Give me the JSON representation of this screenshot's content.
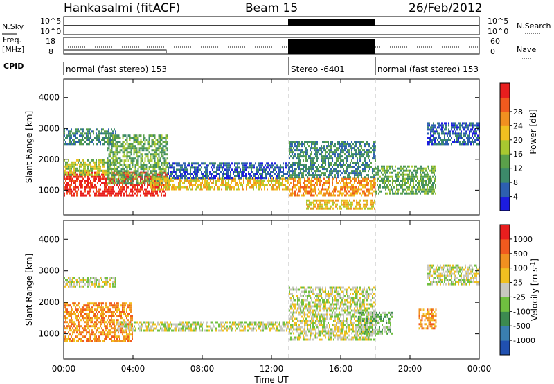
{
  "header": {
    "station": "Hankasalmi (fitACF)",
    "beam": "Beam 15",
    "date": "26/Feb/2012"
  },
  "top_panels": {
    "nsky_label": "N.Sky",
    "nsearch_label": "N.Search",
    "noise_ticks": [
      "10^5",
      "10^0"
    ],
    "freq_label_1": "Freq.",
    "freq_label_2": "[MHz]",
    "freq_ticks": [
      "18",
      "8"
    ],
    "nave_label": "Nave",
    "nave_ticks": [
      "60",
      "0"
    ],
    "cpid_label": "CPID",
    "cpid_segments": [
      {
        "start_hour": 0,
        "end_hour": 13,
        "label": "normal (fast stereo) 153"
      },
      {
        "start_hour": 13,
        "end_hour": 18,
        "label": "Stereo -6401"
      },
      {
        "start_hour": 18,
        "end_hour": 24,
        "label": "normal (fast stereo) 153"
      }
    ],
    "stereo_window_hours": [
      13,
      18
    ]
  },
  "chart_data": [
    {
      "type": "heatmap",
      "panel": "power",
      "ylabel": "Slant Range [km]",
      "xlabel": "",
      "x_range_hours": [
        0,
        24
      ],
      "ylim": [
        200,
        4600
      ],
      "y_ticks": [
        1000,
        2000,
        3000,
        4000
      ],
      "colorbar_label": "Power [dB]",
      "colorbar_ticks": [
        "4",
        "8",
        "12",
        "16",
        "20",
        "24",
        "28"
      ],
      "colorbar_colors": [
        "#1c1ce0",
        "#2d5fb0",
        "#3c8a6a",
        "#5aa04a",
        "#a8c830",
        "#f0c020",
        "#f09020",
        "#f05a1e",
        "#e81e1e"
      ],
      "echo_bands": [
        {
          "start_hour": 0.0,
          "end_hour": 6.0,
          "range_start_km": 800,
          "range_end_km": 1600,
          "level": 8
        },
        {
          "start_hour": 0.0,
          "end_hour": 3.0,
          "range_start_km": 1500,
          "range_end_km": 2000,
          "level": 4
        },
        {
          "start_hour": 0.0,
          "end_hour": 3.0,
          "range_start_km": 2500,
          "range_end_km": 3000,
          "level": 2
        },
        {
          "start_hour": 2.5,
          "end_hour": 6.0,
          "range_start_km": 1200,
          "range_end_km": 2800,
          "level": 3
        },
        {
          "start_hour": 5.0,
          "end_hour": 13.0,
          "range_start_km": 1000,
          "range_end_km": 1400,
          "level": 5
        },
        {
          "start_hour": 6.0,
          "end_hour": 13.0,
          "range_start_km": 1400,
          "range_end_km": 1900,
          "level": 1
        },
        {
          "start_hour": 13.0,
          "end_hour": 18.0,
          "range_start_km": 800,
          "range_end_km": 1400,
          "level": 6
        },
        {
          "start_hour": 13.0,
          "end_hour": 18.0,
          "range_start_km": 1400,
          "range_end_km": 2600,
          "level": 2
        },
        {
          "start_hour": 14.0,
          "end_hour": 18.0,
          "range_start_km": 400,
          "range_end_km": 700,
          "level": 5
        },
        {
          "start_hour": 18.0,
          "end_hour": 21.5,
          "range_start_km": 900,
          "range_end_km": 1800,
          "level": 3
        },
        {
          "start_hour": 21.0,
          "end_hour": 24.0,
          "range_start_km": 2500,
          "range_end_km": 3200,
          "level": 1
        }
      ]
    },
    {
      "type": "heatmap",
      "panel": "velocity",
      "ylabel": "Slant Range [km]",
      "xlabel": "Time UT",
      "x_range_hours": [
        0,
        24
      ],
      "x_ticks": [
        "00:00",
        "04:00",
        "08:00",
        "12:00",
        "16:00",
        "20:00",
        "00:00"
      ],
      "ylim": [
        200,
        4600
      ],
      "y_ticks": [
        1000,
        2000,
        3000,
        4000
      ],
      "colorbar_label": "Velocity [m s",
      "colorbar_label_sup": "-1",
      "colorbar_label_end": "]",
      "colorbar_ticks": [
        "1000",
        "500",
        "100",
        "25",
        "-25",
        "-100",
        "-500",
        "-1000"
      ],
      "colorbar_colors": [
        "#2050b0",
        "#3a7fb0",
        "#3c8a50",
        "#70c040",
        "#c8c8c0",
        "#f0c020",
        "#f09020",
        "#f05a1e",
        "#e81e1e"
      ],
      "echo_bands": [
        {
          "start_hour": 0.0,
          "end_hour": 4.0,
          "range_start_km": 800,
          "range_end_km": 2000,
          "level": 6
        },
        {
          "start_hour": 0.0,
          "end_hour": 3.0,
          "range_start_km": 2500,
          "range_end_km": 2800,
          "level": 4
        },
        {
          "start_hour": 3.0,
          "end_hour": 13.0,
          "range_start_km": 1100,
          "range_end_km": 1400,
          "level": 4
        },
        {
          "start_hour": 13.0,
          "end_hour": 18.0,
          "range_start_km": 800,
          "range_end_km": 2500,
          "level": 4
        },
        {
          "start_hour": 17.0,
          "end_hour": 19.0,
          "range_start_km": 1000,
          "range_end_km": 1700,
          "level": 3
        },
        {
          "start_hour": 20.5,
          "end_hour": 21.5,
          "range_start_km": 1200,
          "range_end_km": 1800,
          "level": 6
        },
        {
          "start_hour": 21.0,
          "end_hour": 24.0,
          "range_start_km": 2600,
          "range_end_km": 3200,
          "level": 4
        }
      ]
    }
  ]
}
